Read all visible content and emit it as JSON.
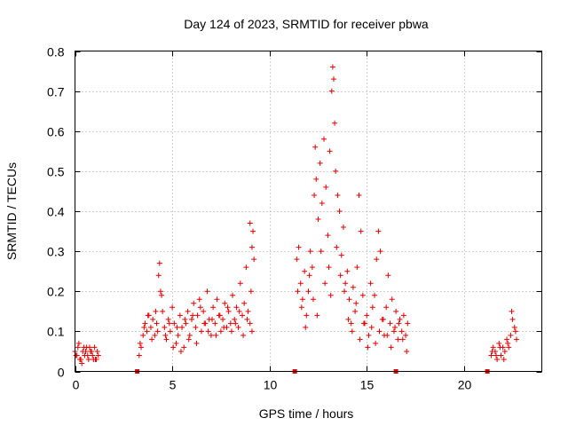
{
  "chart_data": {
    "type": "scatter",
    "title": "Day 124 of 2023, SRMTID for receiver pbwa",
    "xlabel": "GPS time / hours",
    "ylabel": "SRMTID / TECUs",
    "xlim": [
      0,
      24
    ],
    "ylim": [
      0,
      0.8
    ],
    "xticks": [
      0,
      5,
      10,
      15,
      20
    ],
    "xtick_labels": [
      "0",
      "5",
      "10",
      "15",
      "20"
    ],
    "yticks": [
      0,
      0.1,
      0.2,
      0.3,
      0.4,
      0.5,
      0.6,
      0.7,
      0.8
    ],
    "ytick_labels": [
      "0",
      "0.1",
      "0.2",
      "0.3",
      "0.4",
      "0.5",
      "0.6",
      "0.7",
      "0.8"
    ],
    "grid": true,
    "marker": "plus",
    "color": "#e00000",
    "gap_markers_x": [
      3.2,
      11.3,
      16.5,
      21.2
    ],
    "series": [
      {
        "name": "SRMTID",
        "x": [
          0.0,
          0.1,
          0.2,
          0.3,
          0.4,
          0.5,
          0.6,
          0.7,
          0.8,
          0.9,
          1.0,
          1.1,
          1.2,
          0.15,
          0.35,
          0.55,
          0.75,
          0.95,
          1.15,
          0.05,
          0.25,
          0.45,
          0.65,
          0.85,
          1.05,
          3.3,
          3.4,
          3.5,
          3.6,
          3.7,
          3.8,
          3.9,
          4.0,
          4.1,
          4.2,
          4.3,
          4.35,
          4.4,
          4.5,
          4.6,
          4.7,
          4.8,
          4.9,
          5.0,
          5.1,
          5.2,
          5.3,
          5.4,
          5.5,
          5.6,
          5.7,
          5.8,
          5.9,
          6.0,
          6.1,
          6.2,
          6.3,
          6.4,
          6.5,
          6.6,
          6.7,
          6.8,
          6.9,
          7.0,
          7.1,
          7.2,
          7.3,
          7.4,
          7.5,
          7.6,
          7.7,
          7.8,
          7.9,
          8.0,
          8.1,
          8.2,
          8.3,
          8.4,
          8.5,
          8.6,
          8.7,
          8.8,
          8.9,
          9.0,
          9.05,
          9.1,
          9.15,
          9.2,
          3.35,
          3.55,
          3.75,
          3.95,
          4.15,
          4.25,
          4.45,
          4.65,
          4.85,
          5.05,
          5.25,
          5.45,
          5.65,
          5.85,
          6.05,
          6.25,
          6.45,
          6.65,
          6.85,
          7.05,
          7.25,
          7.45,
          7.65,
          7.85,
          8.05,
          8.25,
          8.45,
          8.65,
          8.85,
          9.0,
          9.1,
          11.4,
          11.5,
          11.6,
          11.7,
          11.8,
          11.9,
          12.0,
          12.1,
          12.2,
          12.3,
          12.35,
          12.4,
          12.5,
          12.6,
          12.7,
          12.8,
          12.9,
          13.0,
          13.1,
          13.2,
          13.25,
          13.3,
          13.35,
          13.4,
          13.5,
          13.6,
          13.7,
          13.8,
          13.9,
          14.0,
          14.1,
          14.2,
          14.3,
          14.4,
          14.5,
          14.6,
          14.7,
          14.8,
          14.9,
          15.0,
          15.1,
          15.2,
          15.3,
          15.4,
          15.5,
          15.6,
          15.7,
          15.8,
          15.9,
          16.0,
          16.1,
          16.2,
          16.3,
          16.4,
          16.5,
          16.6,
          16.7,
          16.8,
          16.9,
          17.0,
          17.1,
          11.45,
          11.65,
          11.85,
          12.05,
          12.25,
          12.45,
          12.65,
          12.85,
          13.05,
          13.15,
          13.45,
          13.65,
          13.85,
          14.05,
          14.25,
          14.45,
          14.65,
          14.85,
          15.05,
          15.25,
          15.45,
          15.65,
          15.85,
          16.05,
          16.25,
          16.45,
          16.65,
          16.85,
          17.05,
          21.4,
          21.5,
          21.6,
          21.7,
          21.8,
          21.9,
          22.0,
          22.1,
          22.2,
          22.3,
          22.4,
          22.5,
          22.6,
          22.7,
          21.45,
          21.65,
          21.85,
          22.05,
          22.25,
          22.45,
          22.65
        ],
        "y": [
          0.05,
          0.04,
          0.07,
          0.03,
          0.05,
          0.04,
          0.06,
          0.03,
          0.05,
          0.04,
          0.06,
          0.03,
          0.04,
          0.06,
          0.02,
          0.05,
          0.06,
          0.03,
          0.05,
          0.04,
          0.03,
          0.06,
          0.04,
          0.05,
          0.03,
          0.04,
          0.06,
          0.09,
          0.12,
          0.1,
          0.14,
          0.11,
          0.13,
          0.09,
          0.12,
          0.24,
          0.27,
          0.2,
          0.15,
          0.11,
          0.08,
          0.13,
          0.1,
          0.16,
          0.12,
          0.07,
          0.09,
          0.14,
          0.11,
          0.06,
          0.12,
          0.15,
          0.09,
          0.13,
          0.17,
          0.11,
          0.14,
          0.18,
          0.1,
          0.15,
          0.12,
          0.2,
          0.13,
          0.09,
          0.16,
          0.12,
          0.18,
          0.14,
          0.1,
          0.13,
          0.17,
          0.11,
          0.15,
          0.12,
          0.19,
          0.13,
          0.16,
          0.11,
          0.22,
          0.14,
          0.17,
          0.26,
          0.15,
          0.12,
          0.2,
          0.31,
          0.35,
          0.28,
          0.07,
          0.11,
          0.14,
          0.08,
          0.15,
          0.1,
          0.19,
          0.09,
          0.12,
          0.06,
          0.11,
          0.05,
          0.13,
          0.08,
          0.14,
          0.07,
          0.16,
          0.12,
          0.1,
          0.13,
          0.09,
          0.14,
          0.11,
          0.16,
          0.1,
          0.12,
          0.15,
          0.09,
          0.13,
          0.37,
          0.1,
          0.28,
          0.31,
          0.22,
          0.18,
          0.25,
          0.14,
          0.2,
          0.3,
          0.26,
          0.44,
          0.56,
          0.48,
          0.38,
          0.52,
          0.42,
          0.58,
          0.46,
          0.34,
          0.55,
          0.7,
          0.76,
          0.73,
          0.62,
          0.5,
          0.44,
          0.4,
          0.29,
          0.36,
          0.22,
          0.25,
          0.18,
          0.12,
          0.21,
          0.15,
          0.26,
          0.44,
          0.35,
          0.19,
          0.12,
          0.14,
          0.09,
          0.22,
          0.16,
          0.19,
          0.28,
          0.35,
          0.3,
          0.13,
          0.09,
          0.16,
          0.24,
          0.12,
          0.18,
          0.1,
          0.15,
          0.08,
          0.13,
          0.1,
          0.14,
          0.09,
          0.12,
          0.2,
          0.16,
          0.11,
          0.24,
          0.18,
          0.14,
          0.3,
          0.22,
          0.26,
          0.19,
          0.31,
          0.24,
          0.2,
          0.13,
          0.1,
          0.17,
          0.08,
          0.12,
          0.06,
          0.11,
          0.07,
          0.1,
          0.13,
          0.09,
          0.06,
          0.11,
          0.12,
          0.08,
          0.05,
          0.04,
          0.06,
          0.05,
          0.03,
          0.07,
          0.04,
          0.06,
          0.05,
          0.08,
          0.06,
          0.09,
          0.13,
          0.11,
          0.08,
          0.05,
          0.04,
          0.06,
          0.03,
          0.07,
          0.15,
          0.1
        ]
      }
    ]
  }
}
